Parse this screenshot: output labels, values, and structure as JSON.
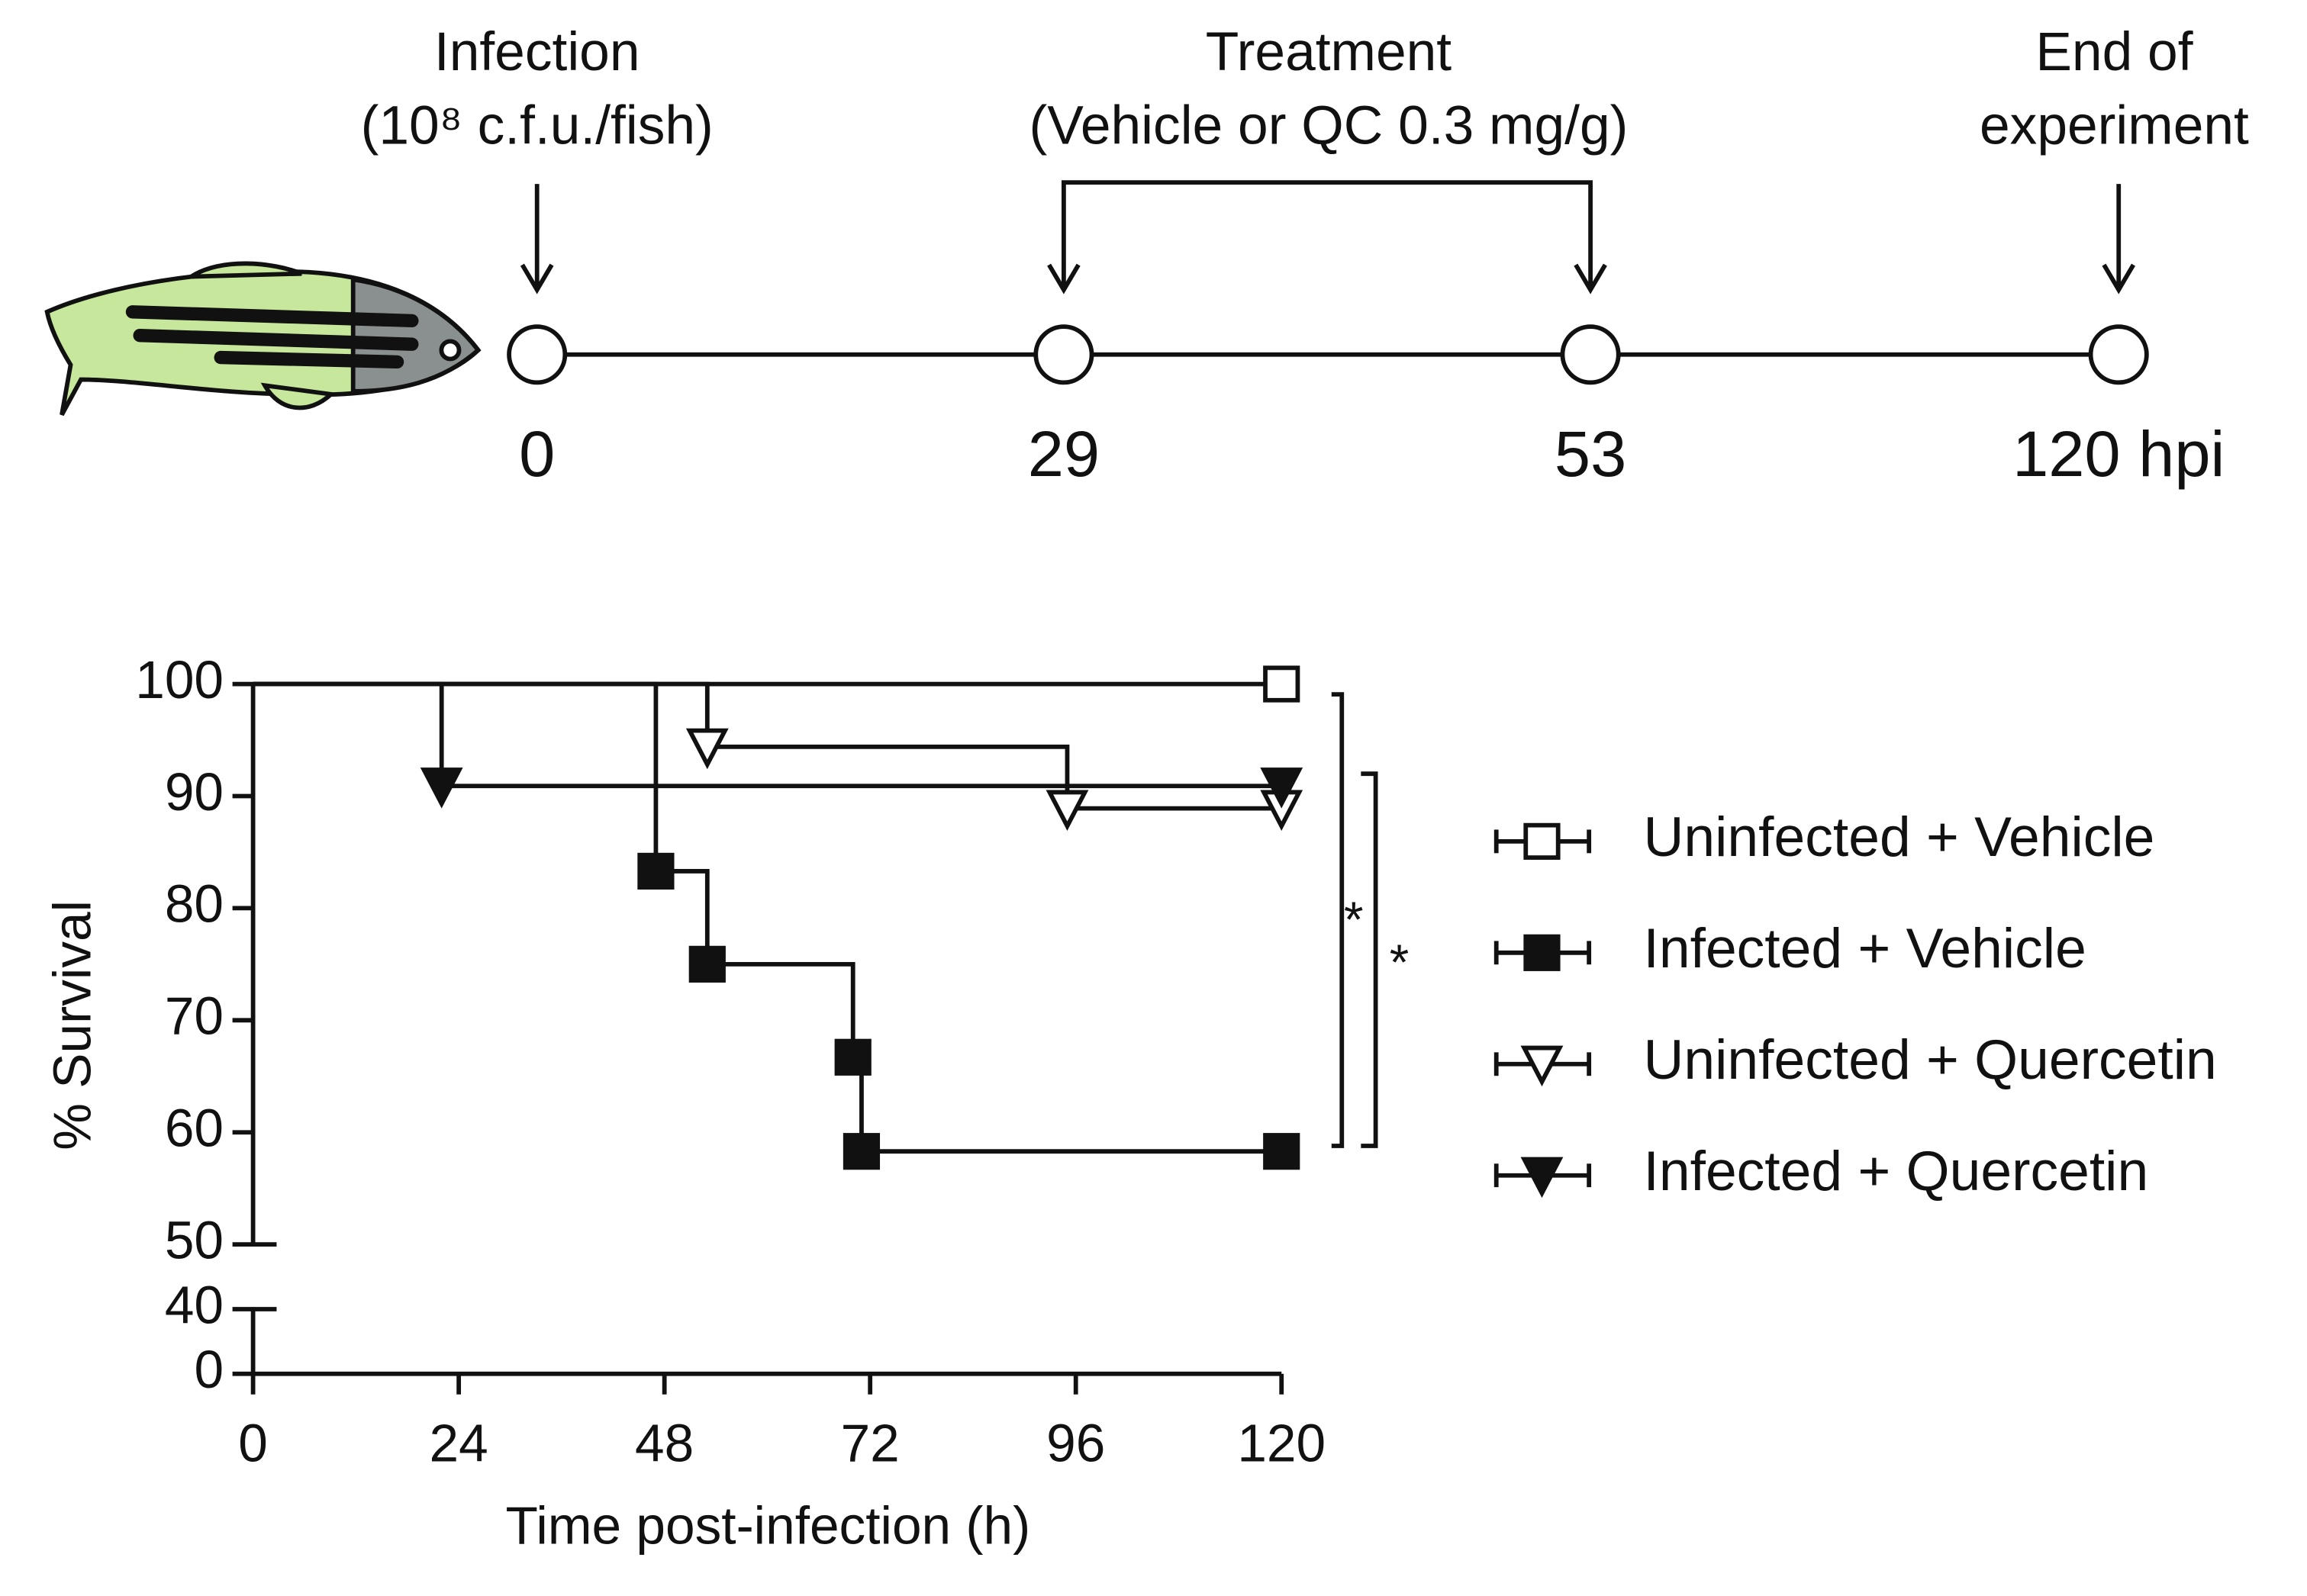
{
  "timeline": {
    "events": [
      {
        "title": "Infection",
        "detail": "(10⁸ c.f.u./fish)"
      },
      {
        "title": "Treatment",
        "detail": "(Vehicle or QC 0.3 mg/g)"
      },
      {
        "title": "End of",
        "detail": "experiment"
      }
    ],
    "points": [
      "0",
      "29",
      "53",
      "120 hpi"
    ]
  },
  "chart_data": {
    "type": "step",
    "xlabel": "Time post-infection  (h)",
    "ylabel": "% Survival",
    "xlim": [
      0,
      120
    ],
    "xticks": [
      0,
      24,
      48,
      72,
      96,
      120
    ],
    "ylim": [
      0,
      100
    ],
    "yticks": [
      0,
      40,
      50,
      60,
      70,
      80,
      90,
      100
    ],
    "y_break": [
      40,
      50
    ],
    "legend": "right",
    "series": [
      {
        "name": "Uninfected + Vehicle",
        "color": "#111111",
        "marker": "square",
        "filled": false,
        "x": [
          0,
          120
        ],
        "values": [
          100,
          100
        ]
      },
      {
        "name": "Infected + Vehicle",
        "color": "#111111",
        "marker": "square",
        "filled": true,
        "x": [
          0,
          47,
          53,
          70,
          71,
          120
        ],
        "values": [
          100,
          83.3,
          75,
          66.7,
          58.3,
          58.3
        ]
      },
      {
        "name": "Uninfected + Quercetin",
        "color": "#111111",
        "marker": "triangle-down",
        "filled": false,
        "x": [
          0,
          53,
          95,
          120
        ],
        "values": [
          100,
          94.4,
          88.9,
          88.9
        ]
      },
      {
        "name": "Infected + Quercetin",
        "color": "#111111",
        "marker": "triangle-down",
        "filled": true,
        "x": [
          0,
          22,
          120
        ],
        "values": [
          100,
          90.9,
          90.9
        ]
      }
    ],
    "annotations": [
      "*",
      "*"
    ]
  }
}
